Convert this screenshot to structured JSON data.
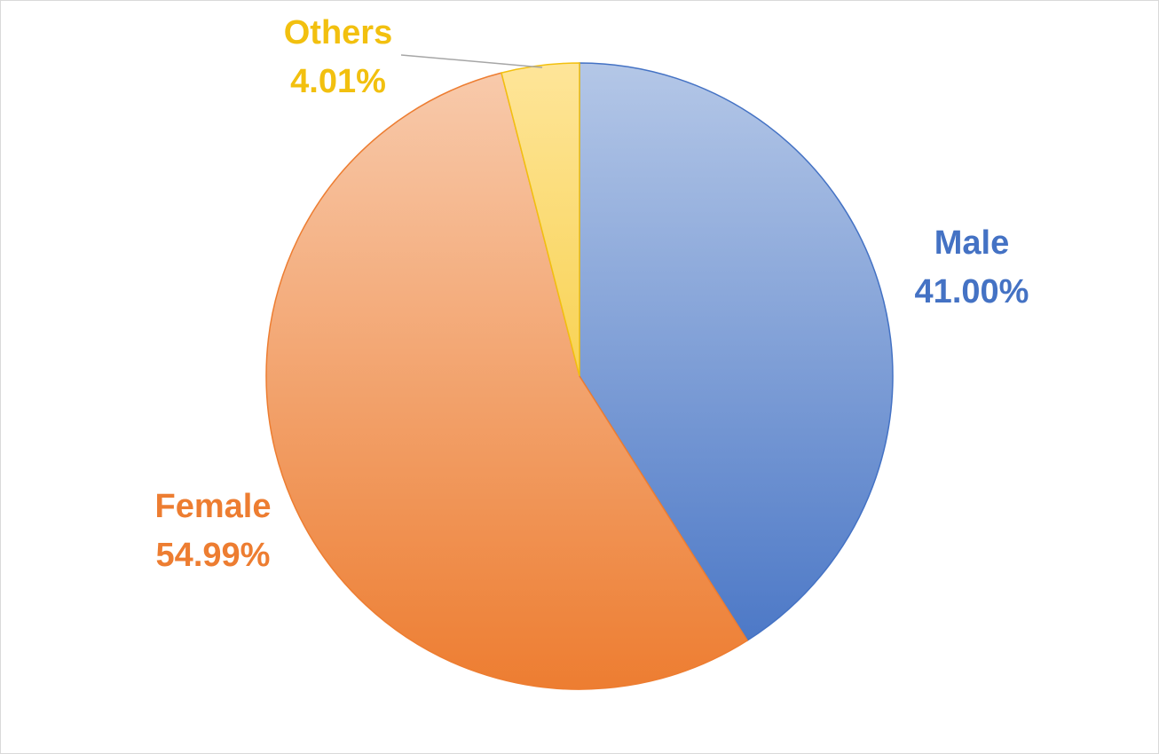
{
  "chart_data": {
    "type": "pie",
    "title": "",
    "slices": [
      {
        "name": "Male",
        "percent_label": "41.00%",
        "value": 41.0,
        "color": "#4472c4",
        "color_light": "#b4c7e7"
      },
      {
        "name": "Female",
        "percent_label": "54.99%",
        "value": 54.99,
        "color": "#ed7d31",
        "color_light": "#f8cbad"
      },
      {
        "name": "Others",
        "percent_label": "4.01%",
        "value": 4.01,
        "color": "#f2c00f",
        "color_light": "#fee599"
      }
    ],
    "start_angle_deg": 0,
    "direction": "clockwise",
    "legend": "none",
    "data_labels": "outside-with-leader-line-for-others"
  }
}
